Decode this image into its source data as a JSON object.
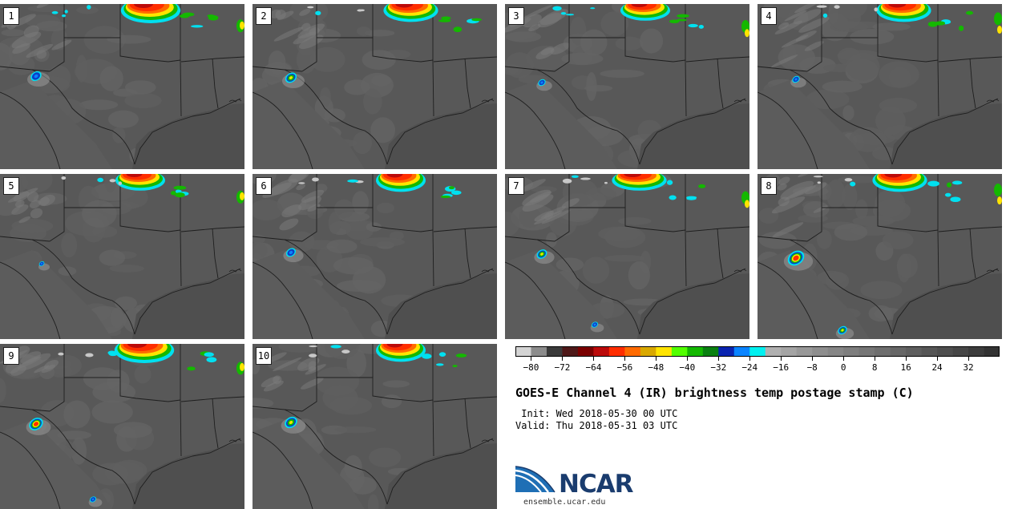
{
  "title": "GOES-E Channel 4 (IR) brightness temp postage stamp (C)",
  "init": " Init: Wed 2018-05-30 00 UTC",
  "valid": "Valid: Thu 2018-05-31 03 UTC",
  "logo": {
    "text": "NCAR",
    "url": "ensemble.ucar.edu"
  },
  "colorbar": {
    "tick_labels": [
      "−80",
      "−72",
      "−64",
      "−56",
      "−48",
      "−40",
      "−32",
      "−24",
      "−16",
      "−8",
      "0",
      "8",
      "16",
      "24",
      "32"
    ],
    "tick_values": [
      -80,
      -72,
      -64,
      -56,
      -48,
      -40,
      -32,
      -24,
      -16,
      -8,
      0,
      8,
      16,
      24,
      32
    ],
    "range": [
      -84,
      40
    ],
    "colors": [
      "#d4d4d4",
      "#8c8c8c",
      "#3a3a3a",
      "#4e1818",
      "#7a0000",
      "#bb0a0a",
      "#ff2d00",
      "#ff6a00",
      "#d9a800",
      "#ffe400",
      "#52ff00",
      "#14b800",
      "#0a8010",
      "#0a24b0",
      "#0a84ff",
      "#00f0f0",
      "#b0b0b0",
      "#a4a4a4",
      "#989898",
      "#8e8e8e",
      "#868686",
      "#7e7e7e",
      "#767676",
      "#6e6e6e",
      "#666666",
      "#5e5e5e",
      "#565656",
      "#4e4e4e",
      "#464646",
      "#3c3c3c",
      "#323232"
    ]
  },
  "panels": [
    {
      "label": "1"
    },
    {
      "label": "2"
    },
    {
      "label": "3"
    },
    {
      "label": "4"
    },
    {
      "label": "5"
    },
    {
      "label": "6"
    },
    {
      "label": "7"
    },
    {
      "label": "8"
    },
    {
      "label": "9"
    },
    {
      "label": "10"
    }
  ]
}
